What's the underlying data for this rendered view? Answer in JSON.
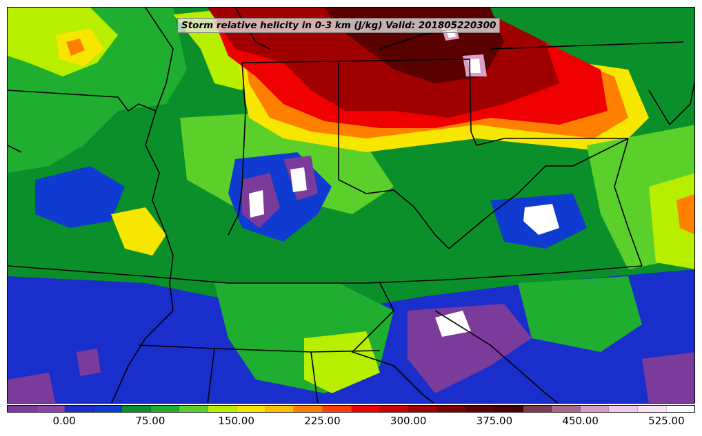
{
  "title": "Storm relative helicity in 0-3 km (J/kg) Valid: 201805220300",
  "colorbar": {
    "colors": [
      "#7b3b9b",
      "#8a45a8",
      "#1a2ecb",
      "#0f3bd0",
      "#0a8f2a",
      "#1fae2f",
      "#5cd02a",
      "#b8ee00",
      "#f6e600",
      "#ffc000",
      "#ff7f00",
      "#ff3a00",
      "#ee0000",
      "#c80000",
      "#a00000",
      "#7a0000",
      "#5a0000",
      "#440000",
      "#7a3a50",
      "#a86a88",
      "#d8a0c8",
      "#f4c8ea",
      "#fbe4f6",
      "#ffffff"
    ],
    "tick_labels": [
      "0.00",
      "75.00",
      "150.00",
      "225.00",
      "300.00",
      "375.00",
      "450.00",
      "525.00"
    ],
    "tick_values": [
      0,
      75,
      150,
      225,
      300,
      375,
      450,
      525
    ],
    "min": -50,
    "max": 550,
    "units": "J/kg"
  }
}
